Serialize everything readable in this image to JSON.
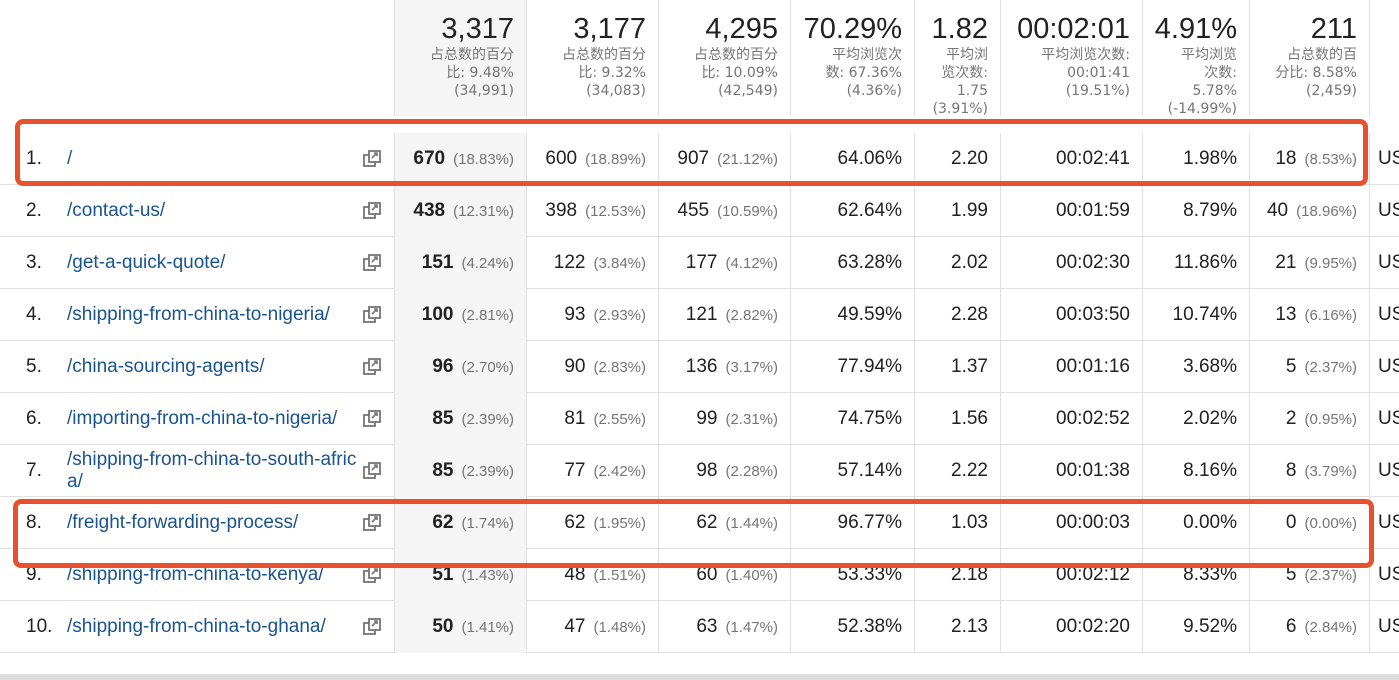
{
  "header": {
    "columns": [
      {
        "total": "3,317",
        "detail": "占总数的百分\n比: 9.48%\n(34,991)"
      },
      {
        "total": "3,177",
        "detail": "占总数的百分\n比: 9.32%\n(34,083)"
      },
      {
        "total": "4,295",
        "detail": "占总数的百分\n比: 10.09%\n(42,549)"
      },
      {
        "total": "70.29%",
        "detail": "平均浏览次\n数: 67.36%\n(4.36%)"
      },
      {
        "total": "1.82",
        "detail": "平均浏\n览次数:\n1.75\n(3.91%)"
      },
      {
        "total": "00:02:01",
        "detail": "平均浏览次数:\n00:01:41\n(19.51%)"
      },
      {
        "total": "4.91%",
        "detail": "平均浏览\n次数:\n5.78%\n(-14.99%)"
      },
      {
        "total": "211",
        "detail": "占总数的百\n分比: 8.58%\n(2,459)"
      }
    ]
  },
  "rows": [
    {
      "index": "1.",
      "page": "/",
      "c1": "670",
      "c1p": "(18.83%)",
      "c2": "600",
      "c2p": "(18.89%)",
      "c3": "907",
      "c3p": "(21.12%)",
      "c4": "64.06%",
      "c5": "2.20",
      "c6": "00:02:41",
      "c7": "1.98%",
      "c8": "18",
      "c8p": "(8.53%)",
      "trail": "US"
    },
    {
      "index": "2.",
      "page": "/contact-us/",
      "c1": "438",
      "c1p": "(12.31%)",
      "c2": "398",
      "c2p": "(12.53%)",
      "c3": "455",
      "c3p": "(10.59%)",
      "c4": "62.64%",
      "c5": "1.99",
      "c6": "00:01:59",
      "c7": "8.79%",
      "c8": "40",
      "c8p": "(18.96%)",
      "trail": "US"
    },
    {
      "index": "3.",
      "page": "/get-a-quick-quote/",
      "c1": "151",
      "c1p": "(4.24%)",
      "c2": "122",
      "c2p": "(3.84%)",
      "c3": "177",
      "c3p": "(4.12%)",
      "c4": "63.28%",
      "c5": "2.02",
      "c6": "00:02:30",
      "c7": "11.86%",
      "c8": "21",
      "c8p": "(9.95%)",
      "trail": "US"
    },
    {
      "index": "4.",
      "page": "/shipping-from-china-to-nigeria/",
      "c1": "100",
      "c1p": "(2.81%)",
      "c2": "93",
      "c2p": "(2.93%)",
      "c3": "121",
      "c3p": "(2.82%)",
      "c4": "49.59%",
      "c5": "2.28",
      "c6": "00:03:50",
      "c7": "10.74%",
      "c8": "13",
      "c8p": "(6.16%)",
      "trail": "US"
    },
    {
      "index": "5.",
      "page": "/china-sourcing-agents/",
      "c1": "96",
      "c1p": "(2.70%)",
      "c2": "90",
      "c2p": "(2.83%)",
      "c3": "136",
      "c3p": "(3.17%)",
      "c4": "77.94%",
      "c5": "1.37",
      "c6": "00:01:16",
      "c7": "3.68%",
      "c8": "5",
      "c8p": "(2.37%)",
      "trail": "US"
    },
    {
      "index": "6.",
      "page": "/importing-from-china-to-nigeria/",
      "c1": "85",
      "c1p": "(2.39%)",
      "c2": "81",
      "c2p": "(2.55%)",
      "c3": "99",
      "c3p": "(2.31%)",
      "c4": "74.75%",
      "c5": "1.56",
      "c6": "00:02:52",
      "c7": "2.02%",
      "c8": "2",
      "c8p": "(0.95%)",
      "trail": "US"
    },
    {
      "index": "7.",
      "page": "/shipping-from-china-to-south-africa/",
      "c1": "85",
      "c1p": "(2.39%)",
      "c2": "77",
      "c2p": "(2.42%)",
      "c3": "98",
      "c3p": "(2.28%)",
      "c4": "57.14%",
      "c5": "2.22",
      "c6": "00:01:38",
      "c7": "8.16%",
      "c8": "8",
      "c8p": "(3.79%)",
      "trail": "US"
    },
    {
      "index": "8.",
      "page": "/freight-forwarding-process/",
      "c1": "62",
      "c1p": "(1.74%)",
      "c2": "62",
      "c2p": "(1.95%)",
      "c3": "62",
      "c3p": "(1.44%)",
      "c4": "96.77%",
      "c5": "1.03",
      "c6": "00:00:03",
      "c7": "0.00%",
      "c8": "0",
      "c8p": "(0.00%)",
      "trail": "US"
    },
    {
      "index": "9.",
      "page": "/shipping-from-china-to-kenya/",
      "c1": "51",
      "c1p": "(1.43%)",
      "c2": "48",
      "c2p": "(1.51%)",
      "c3": "60",
      "c3p": "(1.40%)",
      "c4": "53.33%",
      "c5": "2.18",
      "c6": "00:02:12",
      "c7": "8.33%",
      "c8": "5",
      "c8p": "(2.37%)",
      "trail": "US"
    },
    {
      "index": "10.",
      "page": "/shipping-from-china-to-ghana/",
      "c1": "50",
      "c1p": "(1.41%)",
      "c2": "47",
      "c2p": "(1.48%)",
      "c3": "63",
      "c3p": "(1.47%)",
      "c4": "52.38%",
      "c5": "2.13",
      "c6": "00:02:20",
      "c7": "9.52%",
      "c8": "6",
      "c8p": "(2.84%)",
      "trail": "US"
    }
  ],
  "icons": {
    "row_action": "open-in-new-window-icon"
  },
  "colors": {
    "link": "#1a5490",
    "highlight": "#e8502e",
    "sorted_bg": "#f5f5f5"
  }
}
